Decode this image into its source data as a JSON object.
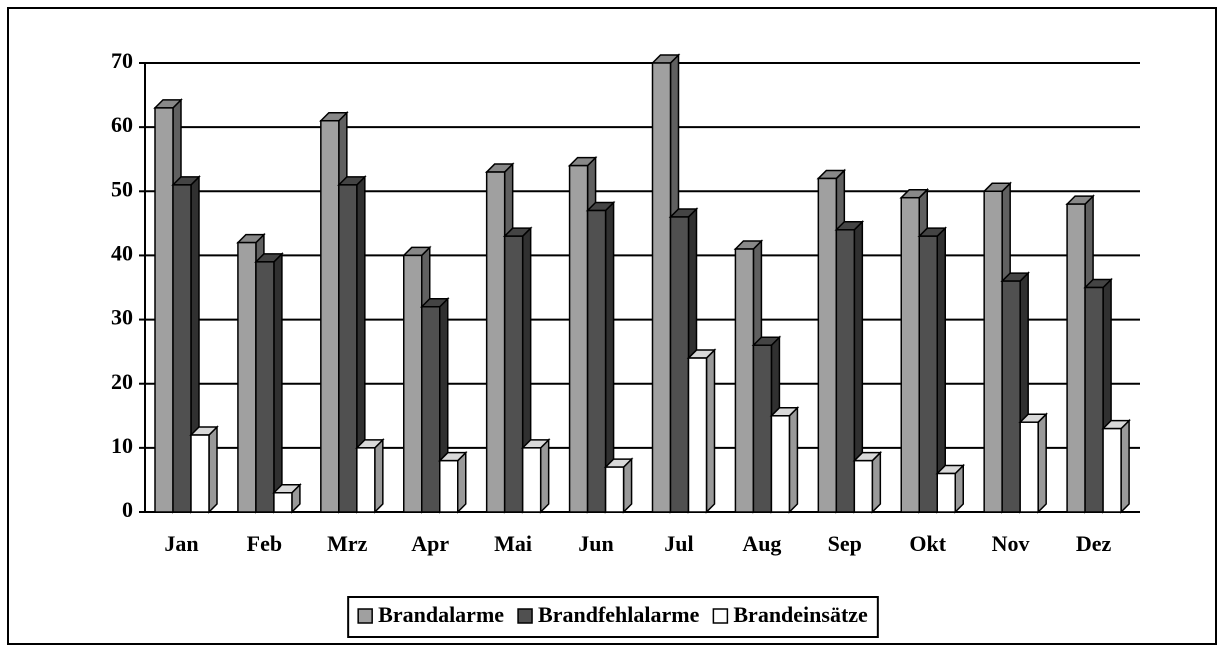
{
  "chart_data": {
    "type": "bar3d",
    "categories": [
      "Jan",
      "Feb",
      "Mrz",
      "Apr",
      "Mai",
      "Jun",
      "Jul",
      "Aug",
      "Sep",
      "Okt",
      "Nov",
      "Dez"
    ],
    "series": [
      {
        "name": "Brandalarme",
        "color": "#a0a0a0",
        "values": [
          63,
          42,
          61,
          40,
          53,
          54,
          70,
          41,
          52,
          49,
          50,
          48
        ]
      },
      {
        "name": "Brandfehlalarme",
        "color": "#505050",
        "values": [
          51,
          39,
          51,
          32,
          43,
          47,
          46,
          26,
          44,
          43,
          36,
          35
        ]
      },
      {
        "name": "Brandeinsätze",
        "color": "#ffffff",
        "values": [
          12,
          3,
          10,
          8,
          10,
          7,
          24,
          15,
          8,
          6,
          14,
          13
        ]
      }
    ],
    "ylim": [
      0,
      70
    ],
    "yticks": [
      0,
      10,
      20,
      30,
      40,
      50,
      60,
      70
    ],
    "grid": true,
    "legend": "bottom"
  }
}
